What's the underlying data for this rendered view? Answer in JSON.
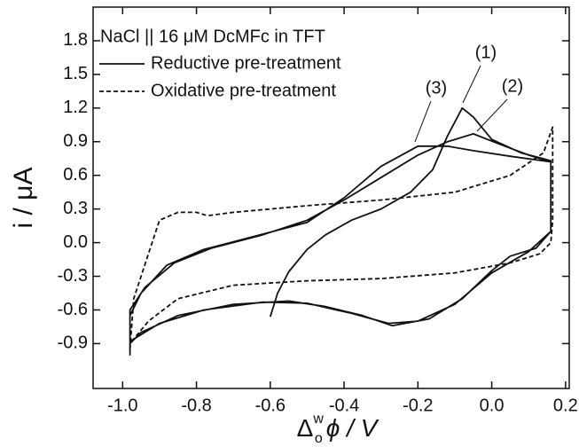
{
  "chart_data": {
    "type": "line",
    "title": "NaCl || 16 μM DcMFc in TFT",
    "ylabel": "i / μA",
    "xlabel": {
      "base": "Δ",
      "sup": "w",
      "sub": "o",
      "rest": "ϕ / V"
    },
    "xlim": [
      -1.08,
      0.21
    ],
    "ylim": [
      -1.3,
      2.1
    ],
    "xticks": [
      {
        "value": -1.0,
        "label": "-1.0"
      },
      -0.8,
      -0.6,
      -0.4,
      -0.2,
      {
        "value": 0,
        "label": "0.0"
      },
      0.2
    ],
    "yticks": [
      -0.9,
      -0.6,
      -0.3,
      {
        "value": 0,
        "label": "0.0"
      },
      0.3,
      0.6,
      0.9,
      1.2,
      1.5,
      1.8
    ],
    "annotations": [
      "(1)",
      "(2)",
      "(3)"
    ],
    "series": [
      {
        "name": "Reductive pre-treatment",
        "color": "#111111",
        "linestyle": "solid",
        "x": [
          -0.6,
          -0.58,
          -0.55,
          -0.5,
          -0.45,
          -0.38,
          -0.3,
          -0.22,
          -0.16,
          -0.12,
          -0.08,
          -0.05,
          0.0,
          0.08,
          0.16,
          0.16,
          0.16,
          0.12,
          0.05,
          0.0,
          -0.08,
          -0.17,
          -0.27,
          -0.35,
          -0.45,
          -0.55,
          -0.7,
          -0.85,
          -0.95,
          -0.98,
          -0.98,
          -0.98,
          -0.95,
          -0.88,
          -0.78,
          -0.65,
          -0.5,
          -0.4,
          -0.3,
          -0.2,
          -0.12,
          -0.05,
          0.05,
          0.16,
          null,
          -0.98,
          -0.98,
          -0.94,
          -0.86,
          -0.76,
          -0.62,
          -0.5,
          -0.4,
          -0.3,
          -0.2,
          -0.12,
          -0.05,
          0.02,
          0.1,
          0.16,
          0.16,
          0.1,
          0.0,
          -0.1,
          -0.2,
          -0.28,
          -0.38,
          -0.5,
          -0.62,
          -0.78,
          -0.9,
          -0.98
        ],
        "values": [
          -0.66,
          -0.45,
          -0.26,
          -0.06,
          0.07,
          0.2,
          0.3,
          0.45,
          0.65,
          0.95,
          1.2,
          1.12,
          0.92,
          0.8,
          0.73,
          0.3,
          0.1,
          -0.05,
          -0.12,
          -0.25,
          -0.5,
          -0.68,
          -0.74,
          -0.65,
          -0.57,
          -0.52,
          -0.55,
          -0.65,
          -0.8,
          -0.9,
          -1.0,
          -0.65,
          -0.45,
          -0.2,
          -0.06,
          0.05,
          0.18,
          0.4,
          0.68,
          0.86,
          0.86,
          0.82,
          0.77,
          0.72,
          null,
          -0.95,
          -0.6,
          -0.4,
          -0.18,
          -0.05,
          0.07,
          0.2,
          0.38,
          0.58,
          0.78,
          0.9,
          0.97,
          0.88,
          0.78,
          0.72,
          0.1,
          -0.08,
          -0.27,
          -0.55,
          -0.7,
          -0.72,
          -0.63,
          -0.54,
          -0.53,
          -0.6,
          -0.72,
          -0.88
        ]
      },
      {
        "name": "Oxidative pre-treatment",
        "color": "#111111",
        "linestyle": "dashed",
        "x": [
          -0.98,
          -0.97,
          -0.93,
          -0.9,
          -0.85,
          -0.8,
          -0.77,
          -0.7,
          -0.5,
          -0.3,
          -0.1,
          0.05,
          0.14,
          0.165,
          0.165,
          0.16,
          0.13,
          0.05,
          -0.1,
          -0.3,
          -0.5,
          -0.7,
          -0.85,
          -0.93,
          -0.98
        ],
        "values": [
          -0.95,
          -0.5,
          -0.1,
          0.2,
          0.27,
          0.27,
          0.24,
          0.27,
          0.33,
          0.38,
          0.45,
          0.6,
          0.8,
          1.03,
          0.2,
          0.0,
          -0.1,
          -0.18,
          -0.27,
          -0.32,
          -0.34,
          -0.38,
          -0.5,
          -0.7,
          -0.9
        ]
      }
    ]
  }
}
